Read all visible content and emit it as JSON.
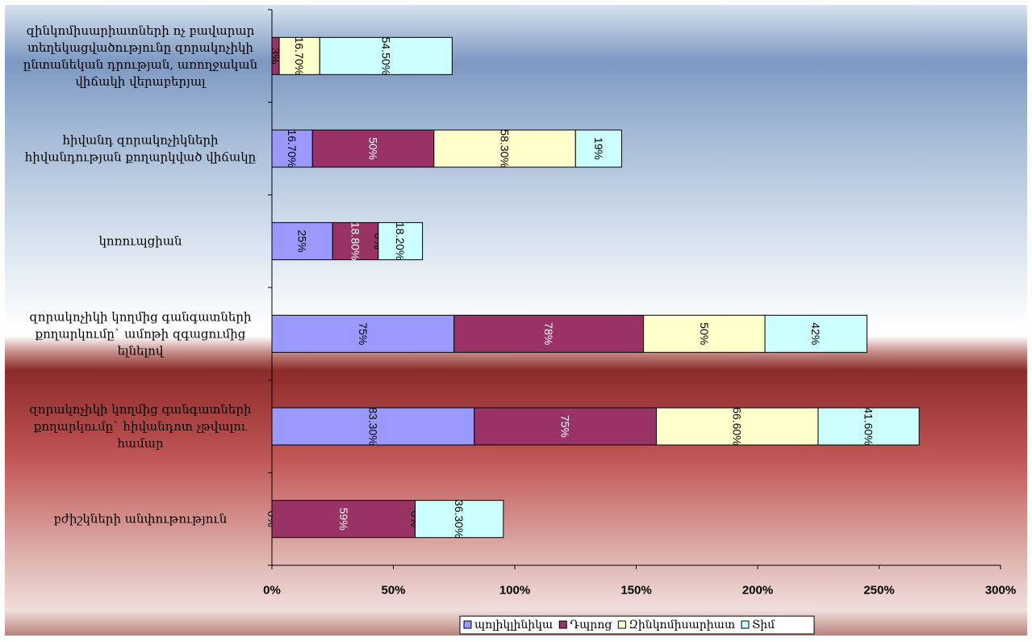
{
  "chart_data": {
    "type": "bar",
    "orientation": "horizontal",
    "stacked": true,
    "categories": [
      "զինկոմիսարիատների ոչ բավարար տեղեկացվածությունը զորակոչիկի ընտանեկան դրության, առողջական վիճակի վերաբերյալ",
      "հիվանդ զորակոչիկների հիվանդության քողարկված վիճակը",
      "կոռուպցիան",
      "զորակոչիկի կողմից գանգատների քողարկումը՝ ամոթի զգացումից ելնելով",
      "զորակոչիկի կողմից գանգատների քողարկումը՝ հիվանդոտ չթվալու համար",
      "բժիշկների անփութություն"
    ],
    "category_lines": [
      [
        "զինկոմիսարիատների ոչ բավարար",
        "տեղեկացվածությունը զորակոչիկի",
        "ընտանեկան դրության, առողջական",
        "վիճակի վերաբերյալ"
      ],
      [
        "հիվանդ զորակոչիկների",
        "հիվանդության  քողարկված վիճակը"
      ],
      [
        "կոռուպցիան"
      ],
      [
        "զորակոչիկի կողմից գանգատների",
        "քողարկումը` ամոթի զգացումից",
        "ելնելով"
      ],
      [
        "զորակոչիկի կողմից գանգատների",
        "քողարկումը` հիվանդոտ չթվալու",
        "համար"
      ],
      [
        "բժիշկների անփութություն"
      ]
    ],
    "series": [
      {
        "name": "պոլիկլինիկա",
        "color": "#9999ff",
        "values": [
          0,
          16.7,
          25,
          75,
          83.3,
          0
        ],
        "labels": [
          "",
          "16.70%",
          "25%",
          "75%",
          "83.30%",
          "0%"
        ],
        "label_color": [
          "#000000",
          "#000000",
          "#000000",
          "#000000",
          "#000000",
          "#000000"
        ]
      },
      {
        "name": "Դպրոց",
        "color": "#993366",
        "values": [
          3,
          50,
          18.8,
          78,
          75,
          59
        ],
        "labels": [
          "3%",
          "50%",
          "18.80%",
          "78%",
          "75%",
          "59%"
        ],
        "label_color": [
          "#000000",
          "#ffffff",
          "#ffffff",
          "#ffffff",
          "#ffffff",
          "#ffffff"
        ]
      },
      {
        "name": "Զինկոմիսարիատ",
        "color": "#ffffcc",
        "values": [
          16.7,
          58.3,
          0,
          50,
          66.6,
          0
        ],
        "labels": [
          "16.70%",
          "58.30%",
          "0%",
          "50%",
          "66.60%",
          "0%"
        ],
        "label_color": [
          "#000000",
          "#000000",
          "#000000",
          "#000000",
          "#000000",
          "#000000"
        ]
      },
      {
        "name": "Տիմ",
        "color": "#ccffff",
        "values": [
          54.5,
          19,
          18.2,
          42,
          41.6,
          36.3
        ],
        "labels": [
          "54.50%",
          "19%",
          "18.20%",
          "42%",
          "41.60%",
          "36.30%"
        ],
        "label_color": [
          "#000000",
          "#000000",
          "#000000",
          "#000000",
          "#000000",
          "#000000"
        ]
      }
    ],
    "x_ticks": [
      "0%",
      "50%",
      "100%",
      "150%",
      "200%",
      "250%",
      "300%"
    ],
    "xlim": [
      0,
      300
    ],
    "legend_position": "bottom",
    "grid": false,
    "title": "",
    "xlabel": "",
    "ylabel": ""
  }
}
